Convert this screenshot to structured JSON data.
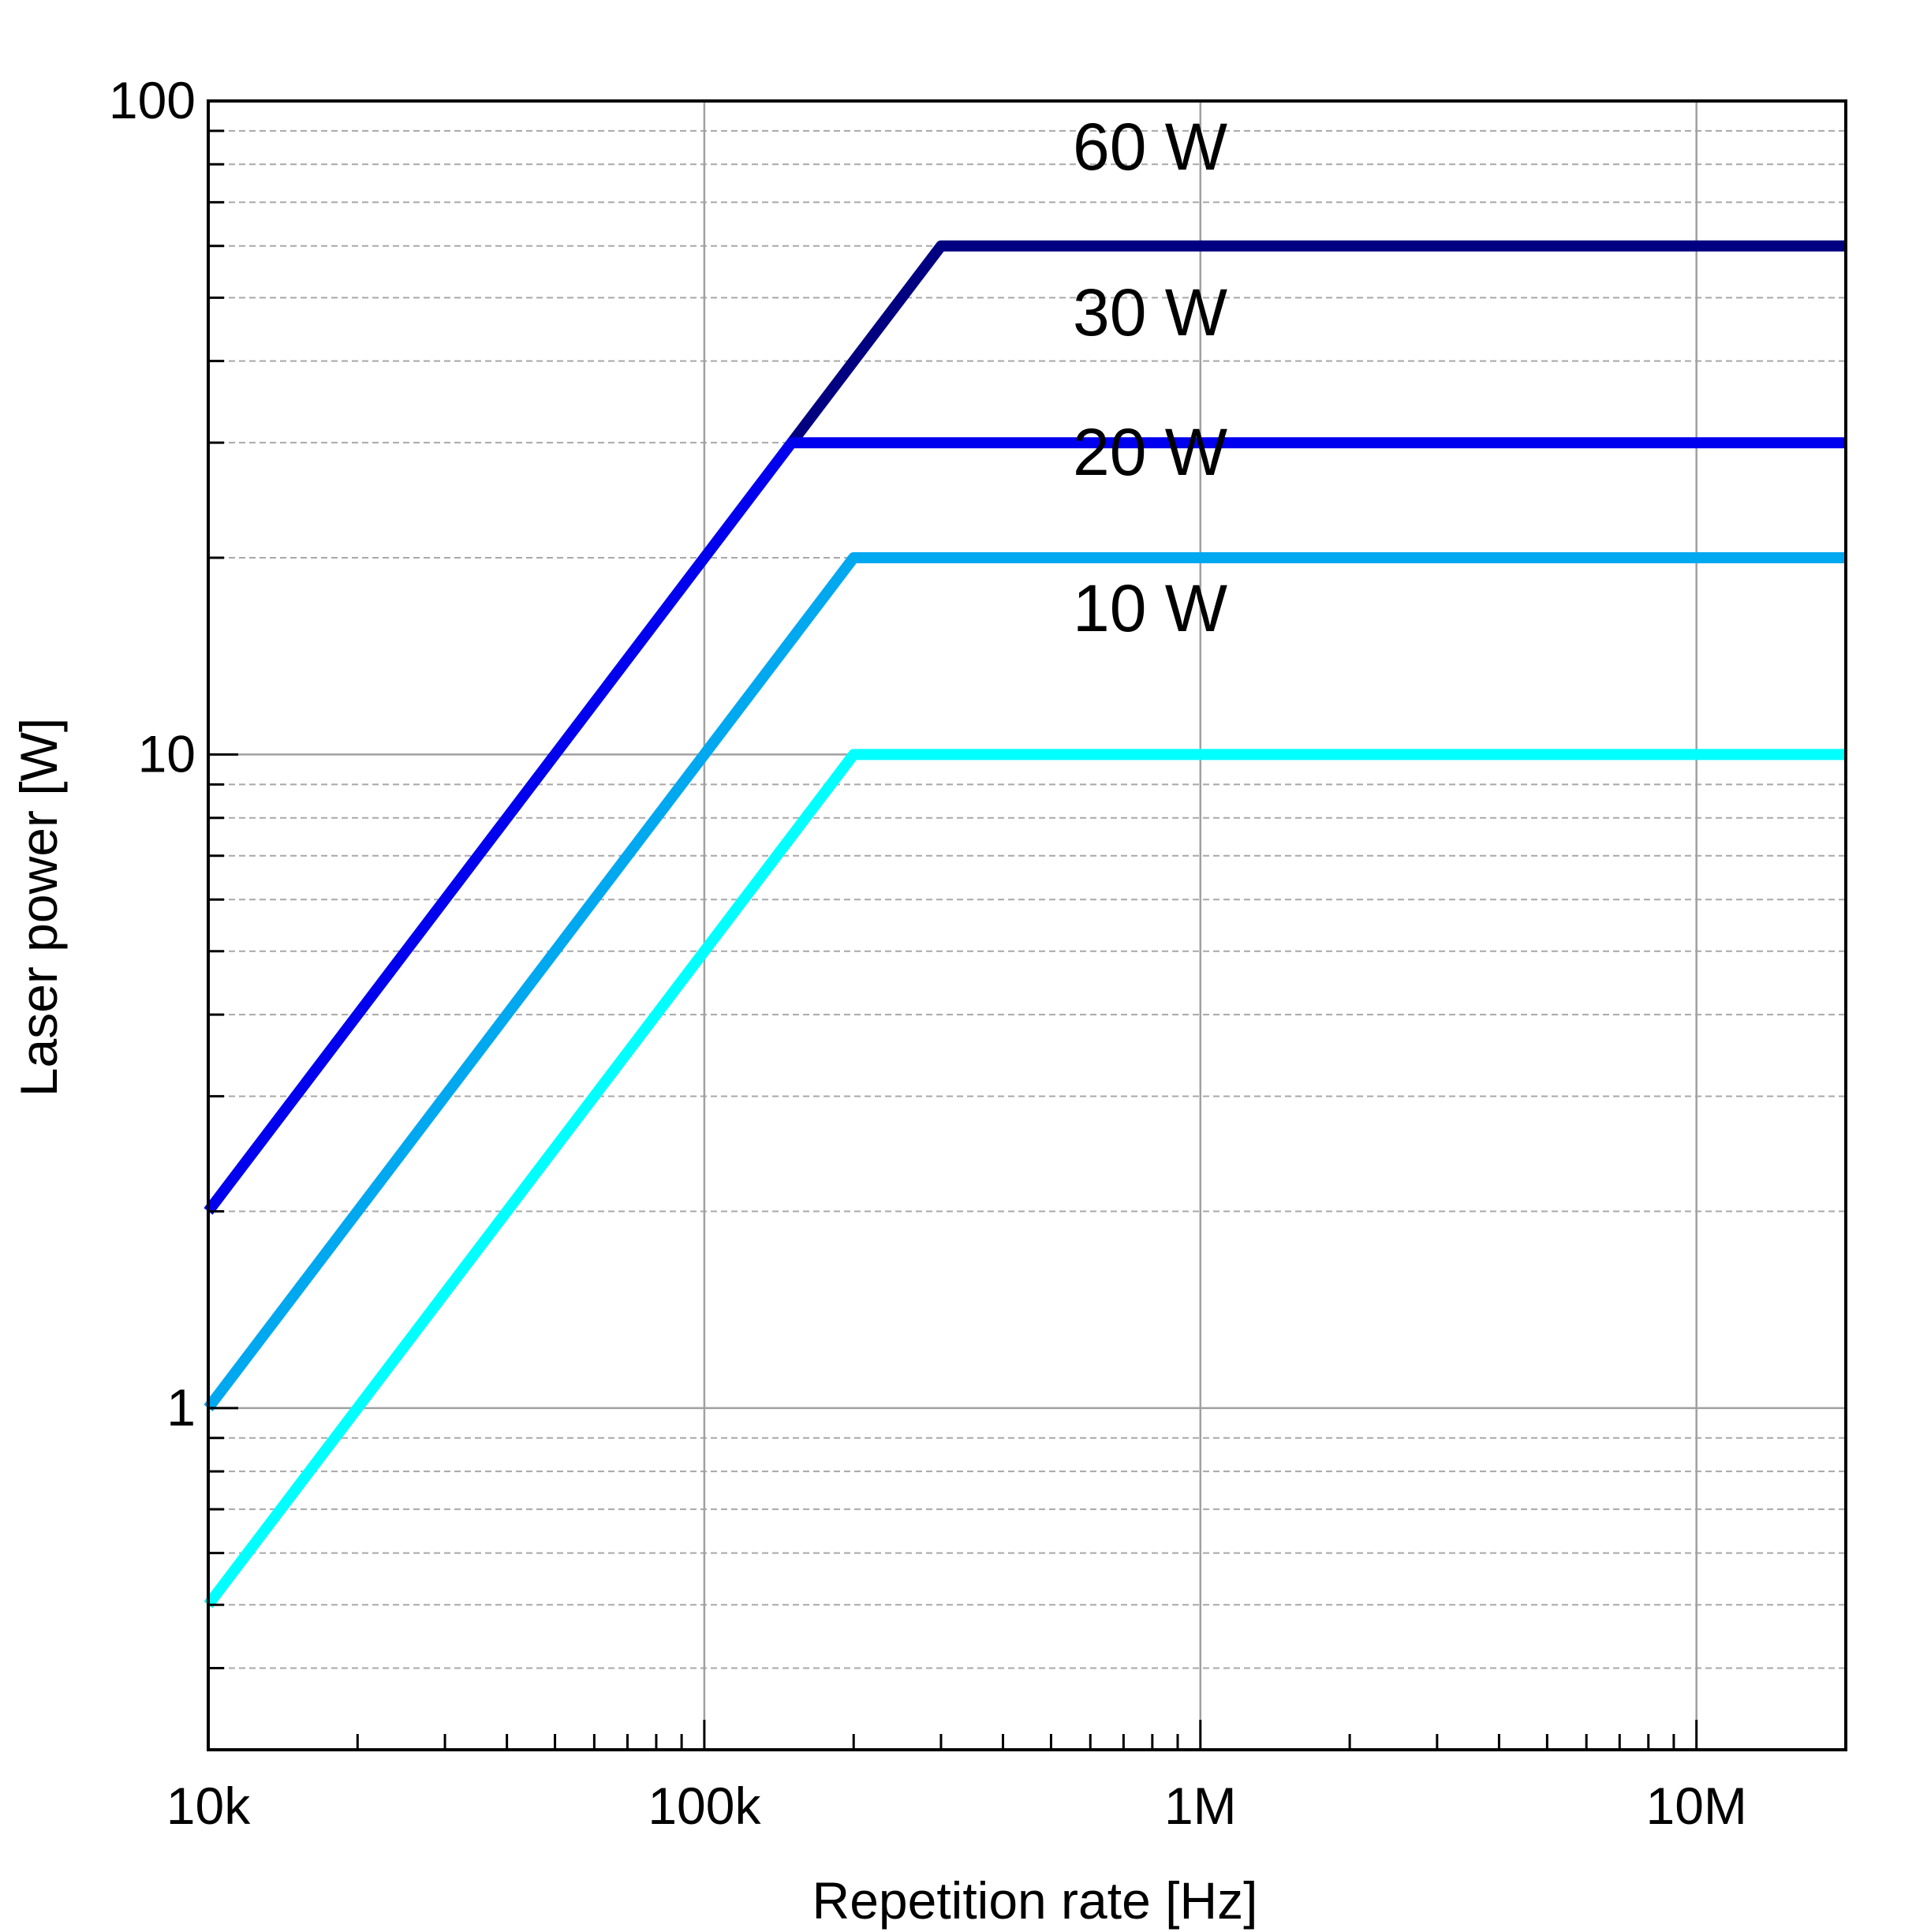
{
  "chart_data": {
    "type": "line",
    "title": "",
    "xlabel": "Repetition rate [Hz]",
    "ylabel": "Laser power [W]",
    "x_scale": "log",
    "y_scale": "log",
    "xlim": [
      10000,
      20000000
    ],
    "ylim": [
      0.3,
      100
    ],
    "x_ticks": [
      {
        "value": 10000,
        "label": "10k"
      },
      {
        "value": 100000,
        "label": "100k"
      },
      {
        "value": 1000000,
        "label": "1M"
      },
      {
        "value": 10000000,
        "label": "10M"
      }
    ],
    "y_ticks": [
      {
        "value": 1,
        "label": "1"
      },
      {
        "value": 10,
        "label": "10"
      },
      {
        "value": 100,
        "label": "100"
      }
    ],
    "grid": {
      "major": true,
      "minor_y": true
    },
    "legend": "none",
    "series": [
      {
        "name": "60 W",
        "color": "#000080",
        "x": [
          150000,
          300000,
          20000000
        ],
        "y": [
          30,
          60,
          60
        ]
      },
      {
        "name": "30 W",
        "color": "#0000ee",
        "x": [
          10000,
          150000,
          20000000
        ],
        "y": [
          2,
          30,
          30
        ]
      },
      {
        "name": "20 W",
        "color": "#00a8f0",
        "x": [
          10000,
          200000,
          20000000
        ],
        "y": [
          1,
          20,
          20
        ]
      },
      {
        "name": "10 W",
        "color": "#00ffff",
        "x": [
          10000,
          200000,
          20000000
        ],
        "y": [
          0.5,
          10,
          10
        ]
      }
    ]
  }
}
